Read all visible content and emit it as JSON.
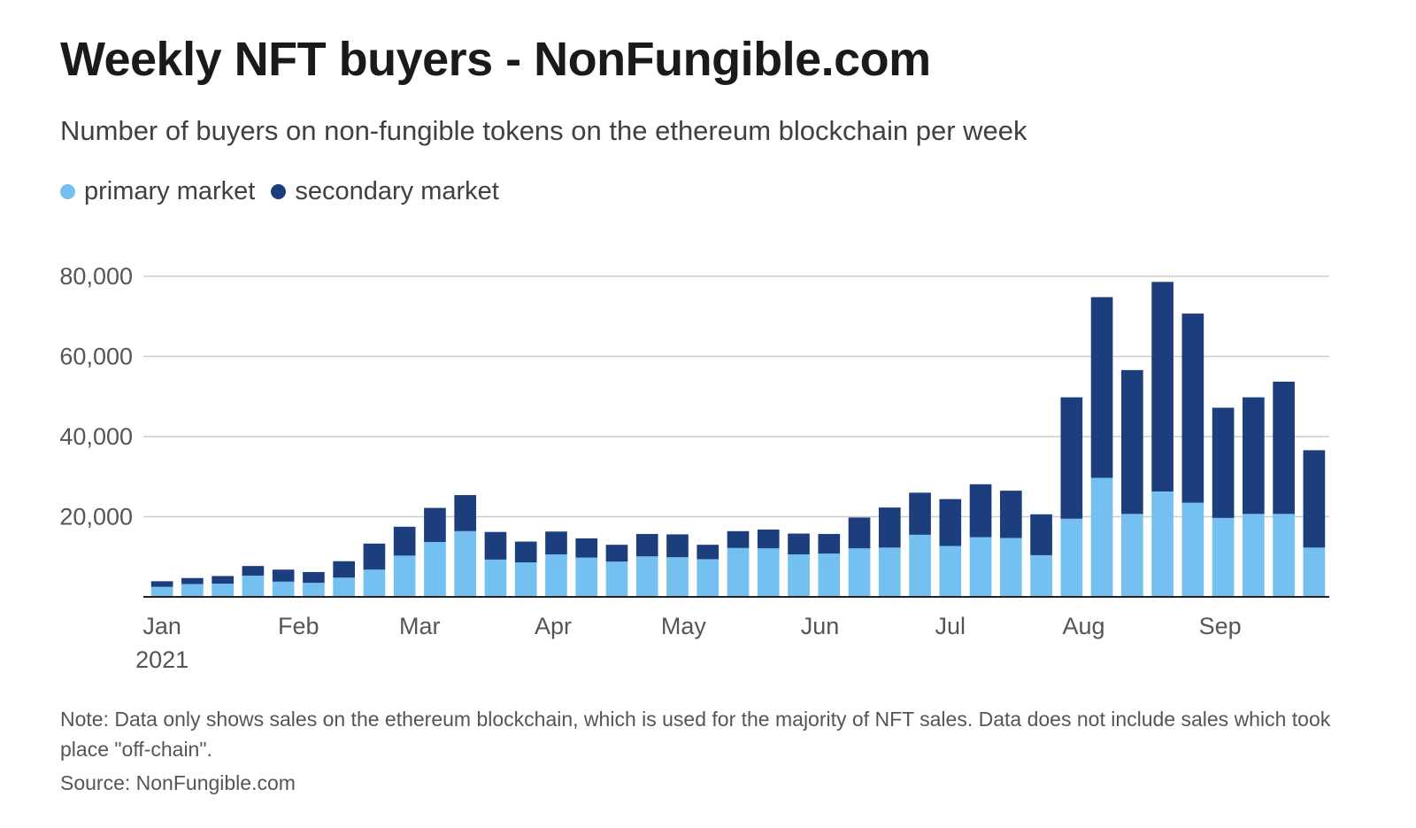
{
  "header": {
    "title": "Weekly NFT buyers - NonFungible.com",
    "subtitle": "Number of buyers on non-fungible tokens on the ethereum blockchain per week"
  },
  "legend": {
    "primary_label": "primary market",
    "secondary_label": "secondary market"
  },
  "colors": {
    "primary": "#74c1f1",
    "secondary": "#1c3e7c",
    "grid": "#cccccc",
    "axis": "#222222"
  },
  "footer": {
    "note": "Note: Data only shows sales on the ethereum blockchain, which is used for the majority of NFT sales. Data does not include sales which took place \"off-chain\".",
    "source": "Source: NonFungible.com"
  },
  "chart_data": {
    "type": "bar",
    "stacked": true,
    "title": "Weekly NFT buyers - NonFungible.com",
    "subtitle": "Number of buyers on non-fungible tokens on the ethereum blockchain per week",
    "xlabel": "",
    "ylabel": "",
    "ylim": [
      0,
      80000
    ],
    "yticks": [
      20000,
      40000,
      60000,
      80000
    ],
    "ytick_labels": [
      "20,000",
      "40,000",
      "60,000",
      "80,000"
    ],
    "grid": true,
    "legend_position": "top-left",
    "month_labels": [
      {
        "label": "Jan",
        "sublabel": "2021",
        "week_index": 0
      },
      {
        "label": "Feb",
        "week_index": 4.5
      },
      {
        "label": "Mar",
        "week_index": 8.5
      },
      {
        "label": "Apr",
        "week_index": 12.9
      },
      {
        "label": "May",
        "week_index": 17.2
      },
      {
        "label": "Jun",
        "week_index": 21.7
      },
      {
        "label": "Jul",
        "week_index": 26
      },
      {
        "label": "Aug",
        "week_index": 30.4
      },
      {
        "label": "Sep",
        "week_index": 34.9
      }
    ],
    "series": [
      {
        "name": "primary market",
        "values": [
          2500,
          3200,
          3300,
          5300,
          3800,
          3500,
          4800,
          6800,
          10300,
          13700,
          16400,
          9300,
          8600,
          10600,
          9800,
          8800,
          10100,
          9900,
          9400,
          12200,
          12100,
          10600,
          10800,
          12100,
          12300,
          15500,
          12700,
          14900,
          14700,
          10400,
          19500,
          29700,
          20700,
          26300,
          23500,
          19700,
          20700,
          20700,
          12300
        ]
      },
      {
        "name": "secondary market",
        "values": [
          1400,
          1500,
          1900,
          2400,
          3000,
          2700,
          4100,
          6500,
          7200,
          8500,
          9000,
          6900,
          5200,
          5700,
          4800,
          4200,
          5600,
          5700,
          3600,
          4200,
          4700,
          5200,
          4900,
          7700,
          10000,
          10500,
          11700,
          13200,
          11800,
          10200,
          30300,
          45100,
          35900,
          52300,
          47200,
          27500,
          29100,
          33000,
          24300
        ]
      }
    ]
  }
}
